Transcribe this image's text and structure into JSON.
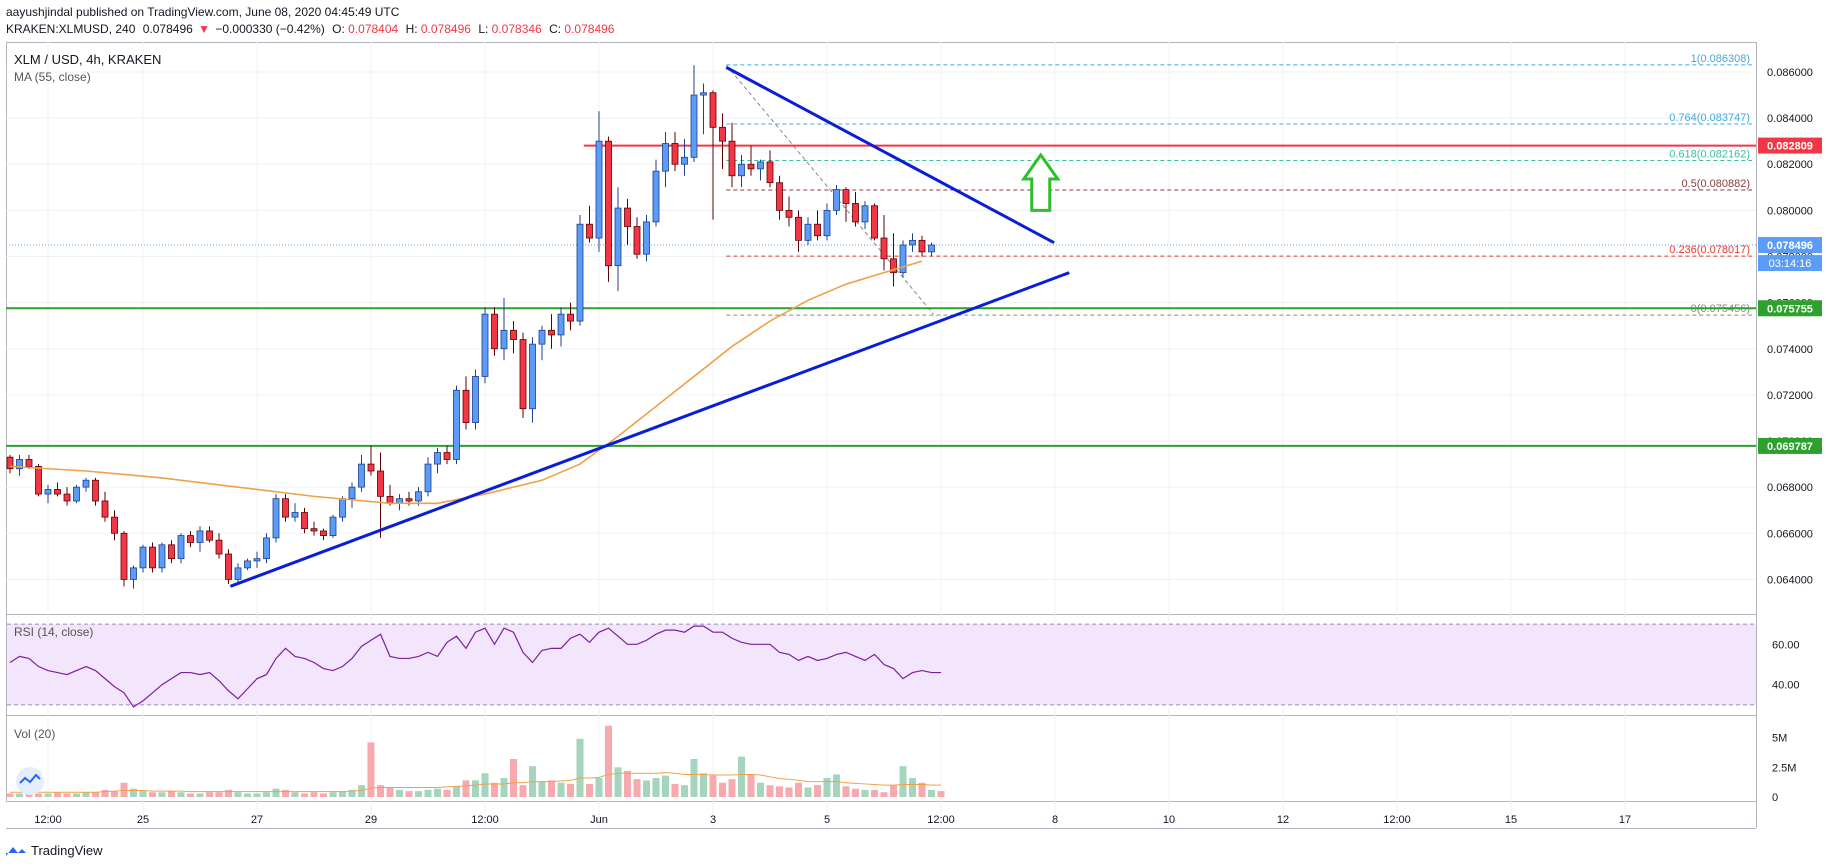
{
  "header": {
    "publisher_line": "aayushjindal published on TradingView.com, June 08, 2020 04:45:49 UTC",
    "symbol_line": "KRAKEN:XLMUSD, 240",
    "last": "0.078496",
    "change": "−0.000330 (−0.42%)",
    "open_label": "O:",
    "open": "0.078404",
    "high_label": "H:",
    "high": "0.078496",
    "low_label": "L:",
    "low": "0.078346",
    "close_label": "C:",
    "close": "0.078496"
  },
  "legend": {
    "title": "XLM / USD, 4h, KRAKEN",
    "ma": "MA (55, close)"
  },
  "rsi_label": "RSI (14, close)",
  "vol_label": "Vol (20)",
  "footer": {
    "brand": "TradingView"
  },
  "colors": {
    "up": "#5b9cf6",
    "up_border": "#1f3f8f",
    "down": "#f23645",
    "down_border": "#600000",
    "ma": "#f0a04a",
    "trend": "#0a1ed8",
    "support": "#2ea02e",
    "resistance": "#f23645",
    "rsi": "#7b1fa2",
    "rsi_bg": "#f3e5fb",
    "vol_up": "#a5d6bd",
    "vol_down": "#f7a9ae",
    "fib_blue": "#3fa9e0",
    "fib_green": "#36c2a2",
    "fib_brown": "#8a3c3c",
    "fib_red": "#e53935",
    "fib_gray": "#888888",
    "arrow": "#2cbf2c"
  },
  "chart_data": {
    "type": "candlestick",
    "ylim": [
      0.0625,
      0.0873
    ],
    "ytick_labels": [
      "0.086000",
      "0.084000",
      "0.082000",
      "0.080000",
      "0.078000",
      "0.076000",
      "0.074000",
      "0.072000",
      "0.070000",
      "0.068000",
      "0.066000",
      "0.064000"
    ],
    "yticks": [
      0.086,
      0.084,
      0.082,
      0.08,
      0.078,
      0.076,
      0.074,
      0.072,
      0.07,
      0.068,
      0.066,
      0.064
    ],
    "xtick_labels": [
      {
        "i": 4,
        "label": "12:00"
      },
      {
        "i": 14,
        "label": "25"
      },
      {
        "i": 26,
        "label": "27"
      },
      {
        "i": 38,
        "label": "29"
      },
      {
        "i": 50,
        "label": "12:00"
      },
      {
        "i": 62,
        "label": "Jun"
      },
      {
        "i": 74,
        "label": "3"
      },
      {
        "i": 86,
        "label": "5"
      },
      {
        "i": 98,
        "label": "12:00"
      },
      {
        "i": 110,
        "label": "8"
      },
      {
        "i": 122,
        "label": "10"
      },
      {
        "i": 134,
        "label": "12"
      },
      {
        "i": 146,
        "label": "12:00"
      },
      {
        "i": 158,
        "label": "15"
      },
      {
        "i": 170,
        "label": "17"
      }
    ],
    "candles": [
      [
        0.0693,
        0.0694,
        0.0686,
        0.0688
      ],
      [
        0.0688,
        0.0694,
        0.0685,
        0.0692
      ],
      [
        0.0692,
        0.0694,
        0.0688,
        0.0689
      ],
      [
        0.0689,
        0.069,
        0.0676,
        0.0677
      ],
      [
        0.0677,
        0.0681,
        0.0673,
        0.0679
      ],
      [
        0.0679,
        0.0682,
        0.0676,
        0.0677
      ],
      [
        0.0677,
        0.068,
        0.0672,
        0.0674
      ],
      [
        0.0674,
        0.0681,
        0.0673,
        0.068
      ],
      [
        0.068,
        0.0684,
        0.0678,
        0.0683
      ],
      [
        0.0683,
        0.0684,
        0.0672,
        0.0674
      ],
      [
        0.0674,
        0.0678,
        0.0665,
        0.0667
      ],
      [
        0.0667,
        0.067,
        0.0657,
        0.066
      ],
      [
        0.066,
        0.0661,
        0.0637,
        0.064
      ],
      [
        0.064,
        0.0646,
        0.0636,
        0.0645
      ],
      [
        0.0645,
        0.0655,
        0.0643,
        0.0654
      ],
      [
        0.0654,
        0.0656,
        0.0643,
        0.0645
      ],
      [
        0.0645,
        0.0656,
        0.0643,
        0.0655
      ],
      [
        0.0655,
        0.0657,
        0.0647,
        0.0649
      ],
      [
        0.0649,
        0.066,
        0.0647,
        0.0659
      ],
      [
        0.0659,
        0.0661,
        0.0654,
        0.0656
      ],
      [
        0.0656,
        0.0663,
        0.0652,
        0.0661
      ],
      [
        0.0661,
        0.0663,
        0.0656,
        0.0657
      ],
      [
        0.0657,
        0.066,
        0.0649,
        0.0651
      ],
      [
        0.0651,
        0.0653,
        0.0638,
        0.064
      ],
      [
        0.064,
        0.0647,
        0.0638,
        0.0645
      ],
      [
        0.0645,
        0.0649,
        0.0644,
        0.0648
      ],
      [
        0.0648,
        0.0652,
        0.0645,
        0.0649
      ],
      [
        0.0649,
        0.066,
        0.0647,
        0.0658
      ],
      [
        0.0658,
        0.0677,
        0.0656,
        0.0675
      ],
      [
        0.0675,
        0.0677,
        0.0665,
        0.0667
      ],
      [
        0.0667,
        0.0673,
        0.0665,
        0.0669
      ],
      [
        0.0669,
        0.0671,
        0.066,
        0.0662
      ],
      [
        0.0662,
        0.0665,
        0.0659,
        0.0661
      ],
      [
        0.0661,
        0.0662,
        0.0657,
        0.0659
      ],
      [
        0.0659,
        0.0668,
        0.0658,
        0.0667
      ],
      [
        0.0667,
        0.0676,
        0.0665,
        0.0675
      ],
      [
        0.0675,
        0.0682,
        0.0671,
        0.068
      ],
      [
        0.068,
        0.0694,
        0.0678,
        0.069
      ],
      [
        0.069,
        0.0698,
        0.0685,
        0.0687
      ],
      [
        0.0687,
        0.0695,
        0.0658,
        0.0676
      ],
      [
        0.0676,
        0.0681,
        0.0672,
        0.0673
      ],
      [
        0.0673,
        0.0677,
        0.067,
        0.0675
      ],
      [
        0.0675,
        0.0678,
        0.0672,
        0.0674
      ],
      [
        0.0674,
        0.068,
        0.0672,
        0.0678
      ],
      [
        0.0678,
        0.0693,
        0.0676,
        0.069
      ],
      [
        0.069,
        0.0697,
        0.0686,
        0.0695
      ],
      [
        0.0695,
        0.0698,
        0.069,
        0.0692
      ],
      [
        0.0692,
        0.0724,
        0.069,
        0.0722
      ],
      [
        0.0722,
        0.0728,
        0.0705,
        0.0708
      ],
      [
        0.0708,
        0.0731,
        0.0705,
        0.0728
      ],
      [
        0.0728,
        0.0758,
        0.0725,
        0.0755
      ],
      [
        0.0755,
        0.0758,
        0.0737,
        0.074
      ],
      [
        0.074,
        0.0762,
        0.0735,
        0.0748
      ],
      [
        0.0748,
        0.0752,
        0.0738,
        0.0744
      ],
      [
        0.0744,
        0.0747,
        0.071,
        0.0714
      ],
      [
        0.0714,
        0.0745,
        0.0708,
        0.0742
      ],
      [
        0.0742,
        0.075,
        0.0735,
        0.0748
      ],
      [
        0.0748,
        0.0755,
        0.074,
        0.0746
      ],
      [
        0.0746,
        0.0758,
        0.0741,
        0.0755
      ],
      [
        0.0755,
        0.076,
        0.0748,
        0.0752
      ],
      [
        0.0752,
        0.0798,
        0.075,
        0.0794
      ],
      [
        0.0794,
        0.0802,
        0.0786,
        0.0788
      ],
      [
        0.0788,
        0.0843,
        0.0782,
        0.083
      ],
      [
        0.083,
        0.0832,
        0.0769,
        0.0776
      ],
      [
        0.0776,
        0.081,
        0.0765,
        0.0801
      ],
      [
        0.0801,
        0.0805,
        0.0785,
        0.0793
      ],
      [
        0.0793,
        0.0797,
        0.0779,
        0.0781
      ],
      [
        0.0781,
        0.0798,
        0.0778,
        0.0795
      ],
      [
        0.0795,
        0.0822,
        0.0793,
        0.0817
      ],
      [
        0.0817,
        0.0834,
        0.081,
        0.0829
      ],
      [
        0.0829,
        0.0834,
        0.0817,
        0.082
      ],
      [
        0.082,
        0.0831,
        0.0815,
        0.0823
      ],
      [
        0.0823,
        0.0863,
        0.0821,
        0.085
      ],
      [
        0.085,
        0.0855,
        0.0833,
        0.0851
      ],
      [
        0.0851,
        0.0852,
        0.0796,
        0.0836
      ],
      [
        0.0836,
        0.0842,
        0.0818,
        0.083
      ],
      [
        0.083,
        0.0838,
        0.081,
        0.0815
      ],
      [
        0.0815,
        0.0824,
        0.081,
        0.082
      ],
      [
        0.082,
        0.0828,
        0.0815,
        0.0818
      ],
      [
        0.0818,
        0.0822,
        0.0813,
        0.0821
      ],
      [
        0.0821,
        0.0826,
        0.081,
        0.0812
      ],
      [
        0.0812,
        0.0815,
        0.0796,
        0.08
      ],
      [
        0.08,
        0.0806,
        0.0793,
        0.0797
      ],
      [
        0.0797,
        0.08,
        0.0782,
        0.0787
      ],
      [
        0.0787,
        0.0797,
        0.0785,
        0.0794
      ],
      [
        0.0794,
        0.08,
        0.0787,
        0.0789
      ],
      [
        0.0789,
        0.0803,
        0.0787,
        0.08
      ],
      [
        0.08,
        0.0811,
        0.0798,
        0.0809
      ],
      [
        0.0809,
        0.081,
        0.0795,
        0.0803
      ],
      [
        0.0803,
        0.0808,
        0.0793,
        0.0795
      ],
      [
        0.0795,
        0.0804,
        0.0792,
        0.0802
      ],
      [
        0.0802,
        0.0803,
        0.0787,
        0.0788
      ],
      [
        0.0788,
        0.0798,
        0.0774,
        0.0779
      ],
      [
        0.0779,
        0.079,
        0.0767,
        0.0773
      ],
      [
        0.0773,
        0.0787,
        0.0771,
        0.0785
      ],
      [
        0.0785,
        0.079,
        0.0782,
        0.0787
      ],
      [
        0.0787,
        0.0789,
        0.078,
        0.0782
      ],
      [
        0.0782,
        0.0786,
        0.078,
        0.0785
      ]
    ],
    "ma55": [
      [
        0,
        0.0689
      ],
      [
        8,
        0.0687
      ],
      [
        16,
        0.0684
      ],
      [
        24,
        0.068
      ],
      [
        32,
        0.0676
      ],
      [
        40,
        0.0673
      ],
      [
        45,
        0.0673
      ],
      [
        50,
        0.0677
      ],
      [
        56,
        0.0683
      ],
      [
        60,
        0.069
      ],
      [
        64,
        0.0702
      ],
      [
        68,
        0.0715
      ],
      [
        72,
        0.0728
      ],
      [
        76,
        0.0741
      ],
      [
        80,
        0.0752
      ],
      [
        84,
        0.0761
      ],
      [
        88,
        0.0768
      ],
      [
        92,
        0.0773
      ],
      [
        96,
        0.0778
      ]
    ],
    "rsi": {
      "ylim": [
        25,
        75
      ],
      "ytick_labels": [
        "60.00",
        "40.00"
      ],
      "yticks": [
        60,
        40
      ],
      "band": [
        30,
        70
      ],
      "values": [
        51,
        54,
        53,
        49,
        47,
        46,
        45,
        47,
        49,
        47,
        43,
        39,
        36,
        29,
        32,
        36,
        40,
        43,
        46,
        46,
        45,
        46,
        42,
        37,
        33,
        38,
        43,
        45,
        53,
        58,
        54,
        53,
        51,
        48,
        47,
        49,
        53,
        59,
        62,
        65,
        54,
        53,
        53,
        54,
        56,
        54,
        61,
        64,
        58,
        66,
        68,
        60,
        68,
        66,
        56,
        51,
        57,
        58,
        58,
        63,
        65,
        61,
        66,
        68,
        64,
        60,
        60,
        62,
        65,
        67,
        67,
        66,
        69,
        69,
        66,
        66,
        63,
        61,
        60,
        60,
        60,
        56,
        55,
        52,
        54,
        52,
        53,
        55,
        56,
        54,
        52,
        55,
        50,
        48,
        43,
        46,
        47,
        46,
        46
      ]
    },
    "volume": {
      "unit": "M",
      "ytick_labels": [
        "5M",
        "2.5M",
        "0"
      ],
      "yticks": [
        5,
        2.5,
        0
      ],
      "values": [
        0.3,
        0.3,
        0.4,
        0.3,
        0.3,
        0.4,
        0.3,
        0.3,
        0.4,
        0.4,
        0.6,
        0.5,
        1.2,
        0.7,
        0.5,
        0.4,
        0.4,
        0.5,
        0.4,
        0.3,
        0.3,
        0.4,
        0.4,
        0.6,
        0.4,
        0.3,
        0.3,
        0.4,
        0.7,
        0.6,
        0.4,
        0.3,
        0.4,
        0.3,
        0.4,
        0.5,
        0.6,
        1.0,
        4.6,
        1.0,
        0.8,
        0.6,
        0.5,
        0.5,
        0.6,
        0.7,
        0.6,
        0.9,
        1.4,
        1.4,
        2.0,
        1.2,
        1.6,
        3.2,
        1.0,
        2.6,
        1.3,
        1.4,
        1.2,
        1.1,
        4.9,
        1.1,
        1.6,
        6.0,
        2.5,
        2.2,
        1.5,
        1.4,
        1.6,
        1.8,
        1.1,
        1.0,
        3.2,
        2.0,
        1.8,
        1.2,
        1.5,
        3.4,
        1.9,
        1.2,
        1.0,
        0.9,
        0.8,
        1.2,
        0.8,
        1.0,
        1.6,
        1.9,
        0.9,
        0.7,
        0.6,
        0.6,
        0.4,
        1.0,
        2.6,
        1.6,
        1.2,
        0.6,
        0.5
      ],
      "ma20": [
        0.4,
        0.4,
        0.4,
        0.4,
        0.4,
        0.4,
        0.4,
        0.4,
        0.4,
        0.4,
        0.45,
        0.5,
        0.55,
        0.55,
        0.55,
        0.5,
        0.5,
        0.5,
        0.5,
        0.45,
        0.45,
        0.45,
        0.45,
        0.45,
        0.45,
        0.45,
        0.45,
        0.45,
        0.45,
        0.45,
        0.45,
        0.45,
        0.45,
        0.45,
        0.45,
        0.45,
        0.5,
        0.55,
        0.75,
        0.8,
        0.8,
        0.8,
        0.8,
        0.8,
        0.8,
        0.8,
        0.85,
        0.9,
        0.95,
        1.0,
        1.1,
        1.1,
        1.1,
        1.2,
        1.2,
        1.3,
        1.3,
        1.3,
        1.35,
        1.4,
        1.6,
        1.6,
        1.65,
        1.9,
        2.0,
        2.0,
        2.0,
        2.0,
        2.0,
        2.05,
        2.0,
        1.9,
        1.9,
        1.9,
        1.85,
        1.85,
        1.85,
        1.9,
        1.9,
        1.85,
        1.7,
        1.55,
        1.5,
        1.4,
        1.3,
        1.3,
        1.3,
        1.3,
        1.2,
        1.15,
        1.1,
        1.05,
        1.0,
        1.0,
        1.05,
        1.05,
        1.05,
        1.0,
        1.0
      ]
    },
    "price_labels": [
      {
        "value": 0.082809,
        "label": "0.082809",
        "color": "#f23645"
      },
      {
        "value": 0.078496,
        "label": "0.078496",
        "color": "#5b9cf6"
      },
      {
        "value": 0.075755,
        "label": "0.075755",
        "color": "#2ea02e"
      },
      {
        "value": 0.069787,
        "label": "0.069787",
        "color": "#2ea02e"
      }
    ],
    "countdown": "03:14:16",
    "horizontal_lines": [
      {
        "value": 0.082809,
        "role": "resistance"
      },
      {
        "value": 0.075755,
        "role": "support"
      },
      {
        "value": 0.069787,
        "role": "support"
      }
    ],
    "fibonacci": [
      {
        "ratio": "1",
        "value": "0.086308",
        "v": 0.086308,
        "color": "fib_blue"
      },
      {
        "ratio": "0.764",
        "value": "0.083747",
        "v": 0.083747,
        "color": "fib_blue"
      },
      {
        "ratio": "0.618",
        "value": "0.082162",
        "v": 0.082162,
        "color": "fib_green"
      },
      {
        "ratio": "0.5",
        "value": "0.080882",
        "v": 0.080882,
        "color": "fib_brown"
      },
      {
        "ratio": "0.236",
        "value": "0.078017",
        "v": 0.078017,
        "color": "fib_red"
      },
      {
        "ratio": "0",
        "value": "0.075456",
        "v": 0.075456,
        "color": "fib_gray"
      }
    ],
    "trendlines": [
      {
        "i1": 23.2,
        "v1": 0.0637,
        "i2": 111.5,
        "v2": 0.0773
      },
      {
        "i1": 75.4,
        "v1": 0.0862,
        "i2": 109.9,
        "v2": 0.0786
      }
    ],
    "fib_diagonal": {
      "i1": 75.4,
      "v1": 0.0863,
      "i2": 97.2,
      "v2": 0.0755
    },
    "arrow": {
      "i": 108.5,
      "from": 0.08,
      "to": 0.0824
    }
  }
}
